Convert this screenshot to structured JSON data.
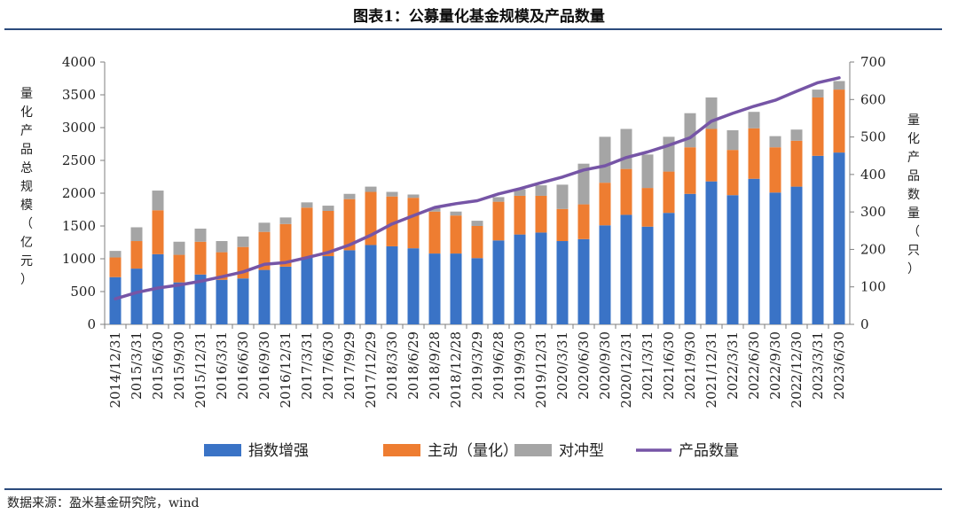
{
  "header": {
    "title": "图表1：公募量化基金规模及产品数量"
  },
  "footer": {
    "source": "数据来源：盈米基金研究院，wind"
  },
  "chart_data": {
    "type": "bar",
    "stacked": true,
    "categories": [
      "2014/12/31",
      "2015/3/31",
      "2015/6/30",
      "2015/9/30",
      "2015/12/31",
      "2016/3/31",
      "2016/6/30",
      "2016/9/30",
      "2016/12/31",
      "2017/3/31",
      "2017/6/30",
      "2017/9/29",
      "2017/12/29",
      "2018/3/30",
      "2018/6/29",
      "2018/9/28",
      "2018/12/28",
      "2019/3/29",
      "2019/6/28",
      "2019/9/30",
      "2019/12/31",
      "2020/3/31",
      "2020/6/30",
      "2020/9/30",
      "2020/12/31",
      "2021/3/31",
      "2021/6/30",
      "2021/9/30",
      "2021/12/31",
      "2022/3/31",
      "2022/6/30",
      "2022/9/30",
      "2022/12/30",
      "2023/3/31",
      "2023/6/30"
    ],
    "series": [
      {
        "name": "指数增强",
        "axis": "left",
        "color": "#3a73c6",
        "values": [
          720,
          850,
          1070,
          640,
          760,
          680,
          700,
          830,
          880,
          1020,
          1040,
          1130,
          1210,
          1190,
          1160,
          1080,
          1080,
          1010,
          1280,
          1370,
          1400,
          1270,
          1300,
          1510,
          1670,
          1490,
          1700,
          1990,
          2180,
          1970,
          2220,
          2010,
          2100,
          2570,
          2620
        ]
      },
      {
        "name": "主动（量化）",
        "axis": "left",
        "color": "#ee7d31",
        "values": [
          300,
          420,
          670,
          420,
          500,
          420,
          480,
          580,
          650,
          760,
          690,
          780,
          810,
          760,
          770,
          640,
          580,
          490,
          590,
          590,
          560,
          490,
          530,
          650,
          700,
          590,
          630,
          710,
          800,
          690,
          770,
          690,
          700,
          890,
          960
        ]
      },
      {
        "name": "对冲型",
        "axis": "left",
        "color": "#a5a5a5",
        "values": [
          100,
          210,
          300,
          200,
          200,
          170,
          160,
          140,
          100,
          80,
          80,
          80,
          80,
          70,
          50,
          50,
          60,
          80,
          70,
          100,
          160,
          370,
          620,
          700,
          610,
          510,
          530,
          520,
          480,
          300,
          250,
          170,
          170,
          120,
          130
        ]
      },
      {
        "name": "产品数量",
        "axis": "right",
        "type": "line",
        "color": "#7655a6",
        "values": [
          68,
          85,
          97,
          105,
          115,
          127,
          140,
          160,
          165,
          178,
          192,
          212,
          238,
          268,
          290,
          312,
          322,
          330,
          348,
          362,
          378,
          393,
          412,
          423,
          445,
          460,
          478,
          498,
          542,
          563,
          582,
          598,
          622,
          645,
          658
        ]
      }
    ],
    "y_left": {
      "label": "量化产品总规模（亿元）",
      "min": 0,
      "max": 4000,
      "ticks": [
        "0",
        "500",
        "1000",
        "1500",
        "2000",
        "2500",
        "3000",
        "3500",
        "4000"
      ]
    },
    "y_right": {
      "label": "量化产品数量（只）",
      "min": 0,
      "max": 700,
      "ticks": [
        "0",
        "100",
        "200",
        "300",
        "400",
        "500",
        "600",
        "700"
      ]
    },
    "legend_position": "bottom"
  }
}
